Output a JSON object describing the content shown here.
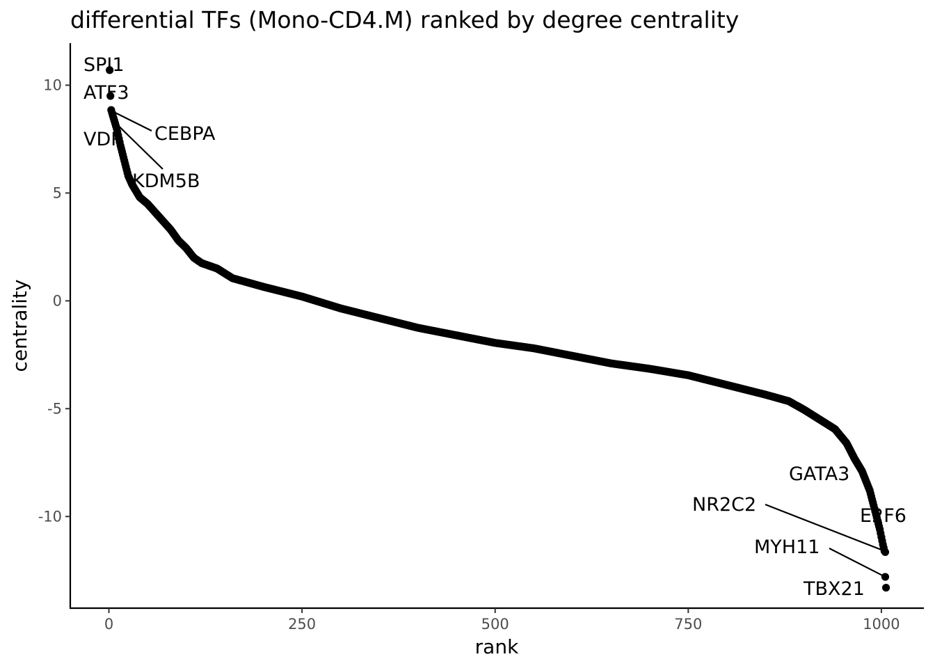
{
  "chart_data": {
    "type": "scatter",
    "title": "differential TFs (Mono-CD4.M) ranked by degree centrality",
    "xlabel": "rank",
    "ylabel": "centrality",
    "xlim": [
      -50,
      1055
    ],
    "ylim": [
      -14.25,
      11.95
    ],
    "x_ticks": [
      0,
      250,
      500,
      750,
      1000
    ],
    "x_tick_labels": [
      "0",
      "250",
      "500",
      "750",
      "1000"
    ],
    "y_ticks": [
      10,
      5,
      0,
      -5,
      -10
    ],
    "y_tick_labels": [
      "10",
      "5",
      "0",
      "-5",
      "-10"
    ],
    "grid": false,
    "legend": "none",
    "n_points": 1005,
    "curve_knots": [
      [
        1,
        10.7
      ],
      [
        2,
        9.5
      ],
      [
        3,
        8.85
      ],
      [
        5,
        8.6
      ],
      [
        10,
        8.0
      ],
      [
        15,
        7.2
      ],
      [
        20,
        6.5
      ],
      [
        25,
        5.8
      ],
      [
        30,
        5.4
      ],
      [
        40,
        4.8
      ],
      [
        50,
        4.5
      ],
      [
        60,
        4.1
      ],
      [
        70,
        3.7
      ],
      [
        80,
        3.3
      ],
      [
        90,
        2.8
      ],
      [
        100,
        2.45
      ],
      [
        110,
        2.0
      ],
      [
        120,
        1.75
      ],
      [
        140,
        1.5
      ],
      [
        160,
        1.05
      ],
      [
        200,
        0.65
      ],
      [
        250,
        0.2
      ],
      [
        300,
        -0.35
      ],
      [
        350,
        -0.8
      ],
      [
        400,
        -1.25
      ],
      [
        450,
        -1.6
      ],
      [
        500,
        -1.95
      ],
      [
        550,
        -2.2
      ],
      [
        600,
        -2.55
      ],
      [
        650,
        -2.9
      ],
      [
        700,
        -3.15
      ],
      [
        750,
        -3.45
      ],
      [
        800,
        -3.9
      ],
      [
        850,
        -4.35
      ],
      [
        880,
        -4.65
      ],
      [
        900,
        -5.05
      ],
      [
        920,
        -5.5
      ],
      [
        940,
        -5.95
      ],
      [
        955,
        -6.6
      ],
      [
        965,
        -7.3
      ],
      [
        975,
        -7.9
      ],
      [
        985,
        -8.8
      ],
      [
        993,
        -9.9
      ],
      [
        998,
        -10.6
      ],
      [
        1002,
        -11.3
      ],
      [
        1004,
        -11.6
      ],
      [
        1005,
        -11.65
      ]
    ],
    "outlier_points": [
      {
        "x": 1005,
        "y": -12.8
      },
      {
        "x": 1006,
        "y": -13.3
      }
    ],
    "labels": [
      {
        "text": "SPI1",
        "x": 1,
        "y": 10.7
      },
      {
        "text": "ATF3",
        "x": 2,
        "y": 9.5
      },
      {
        "text": "CEBPA",
        "x": 4,
        "y": 8.8
      },
      {
        "text": "VDR",
        "x": 13,
        "y": 7.6
      },
      {
        "text": "KDM5B",
        "x": 10,
        "y": 8.2
      },
      {
        "text": "GATA3",
        "x": 985,
        "y": -8.4
      },
      {
        "text": "E2F6",
        "x": 1003,
        "y": -10.9
      },
      {
        "text": "NR2C2",
        "x": 1004,
        "y": -11.6
      },
      {
        "text": "MYH11",
        "x": 1005,
        "y": -12.8
      },
      {
        "text": "TBX21",
        "x": 1006,
        "y": -13.3
      }
    ]
  }
}
